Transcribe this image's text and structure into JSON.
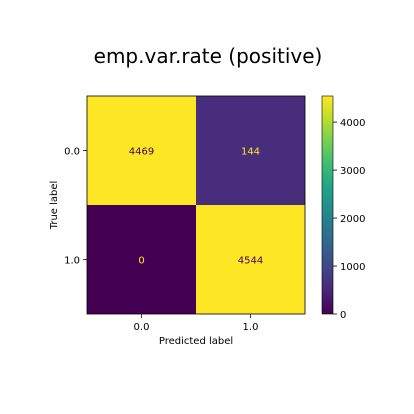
{
  "chart_data": {
    "type": "heatmap",
    "title": "emp.var.rate (positive)",
    "xlabel": "Predicted label",
    "ylabel": "True label",
    "x_categories": [
      "0.0",
      "1.0"
    ],
    "y_categories": [
      "0.0",
      "1.0"
    ],
    "values": [
      [
        4469,
        144
      ],
      [
        0,
        4544
      ]
    ],
    "cell_text_colors": [
      [
        "#440154",
        "#fde725"
      ],
      [
        "#fde725",
        "#440154"
      ]
    ],
    "cell_colors": [
      [
        "#fde725",
        "#472d7b"
      ],
      [
        "#440154",
        "#fde725"
      ]
    ],
    "colormap": "viridis",
    "colorbar": {
      "range": [
        0,
        4544
      ],
      "ticks": [
        0,
        1000,
        2000,
        3000,
        4000
      ],
      "tick_labels": [
        "0",
        "1000",
        "2000",
        "3000",
        "4000"
      ]
    }
  }
}
